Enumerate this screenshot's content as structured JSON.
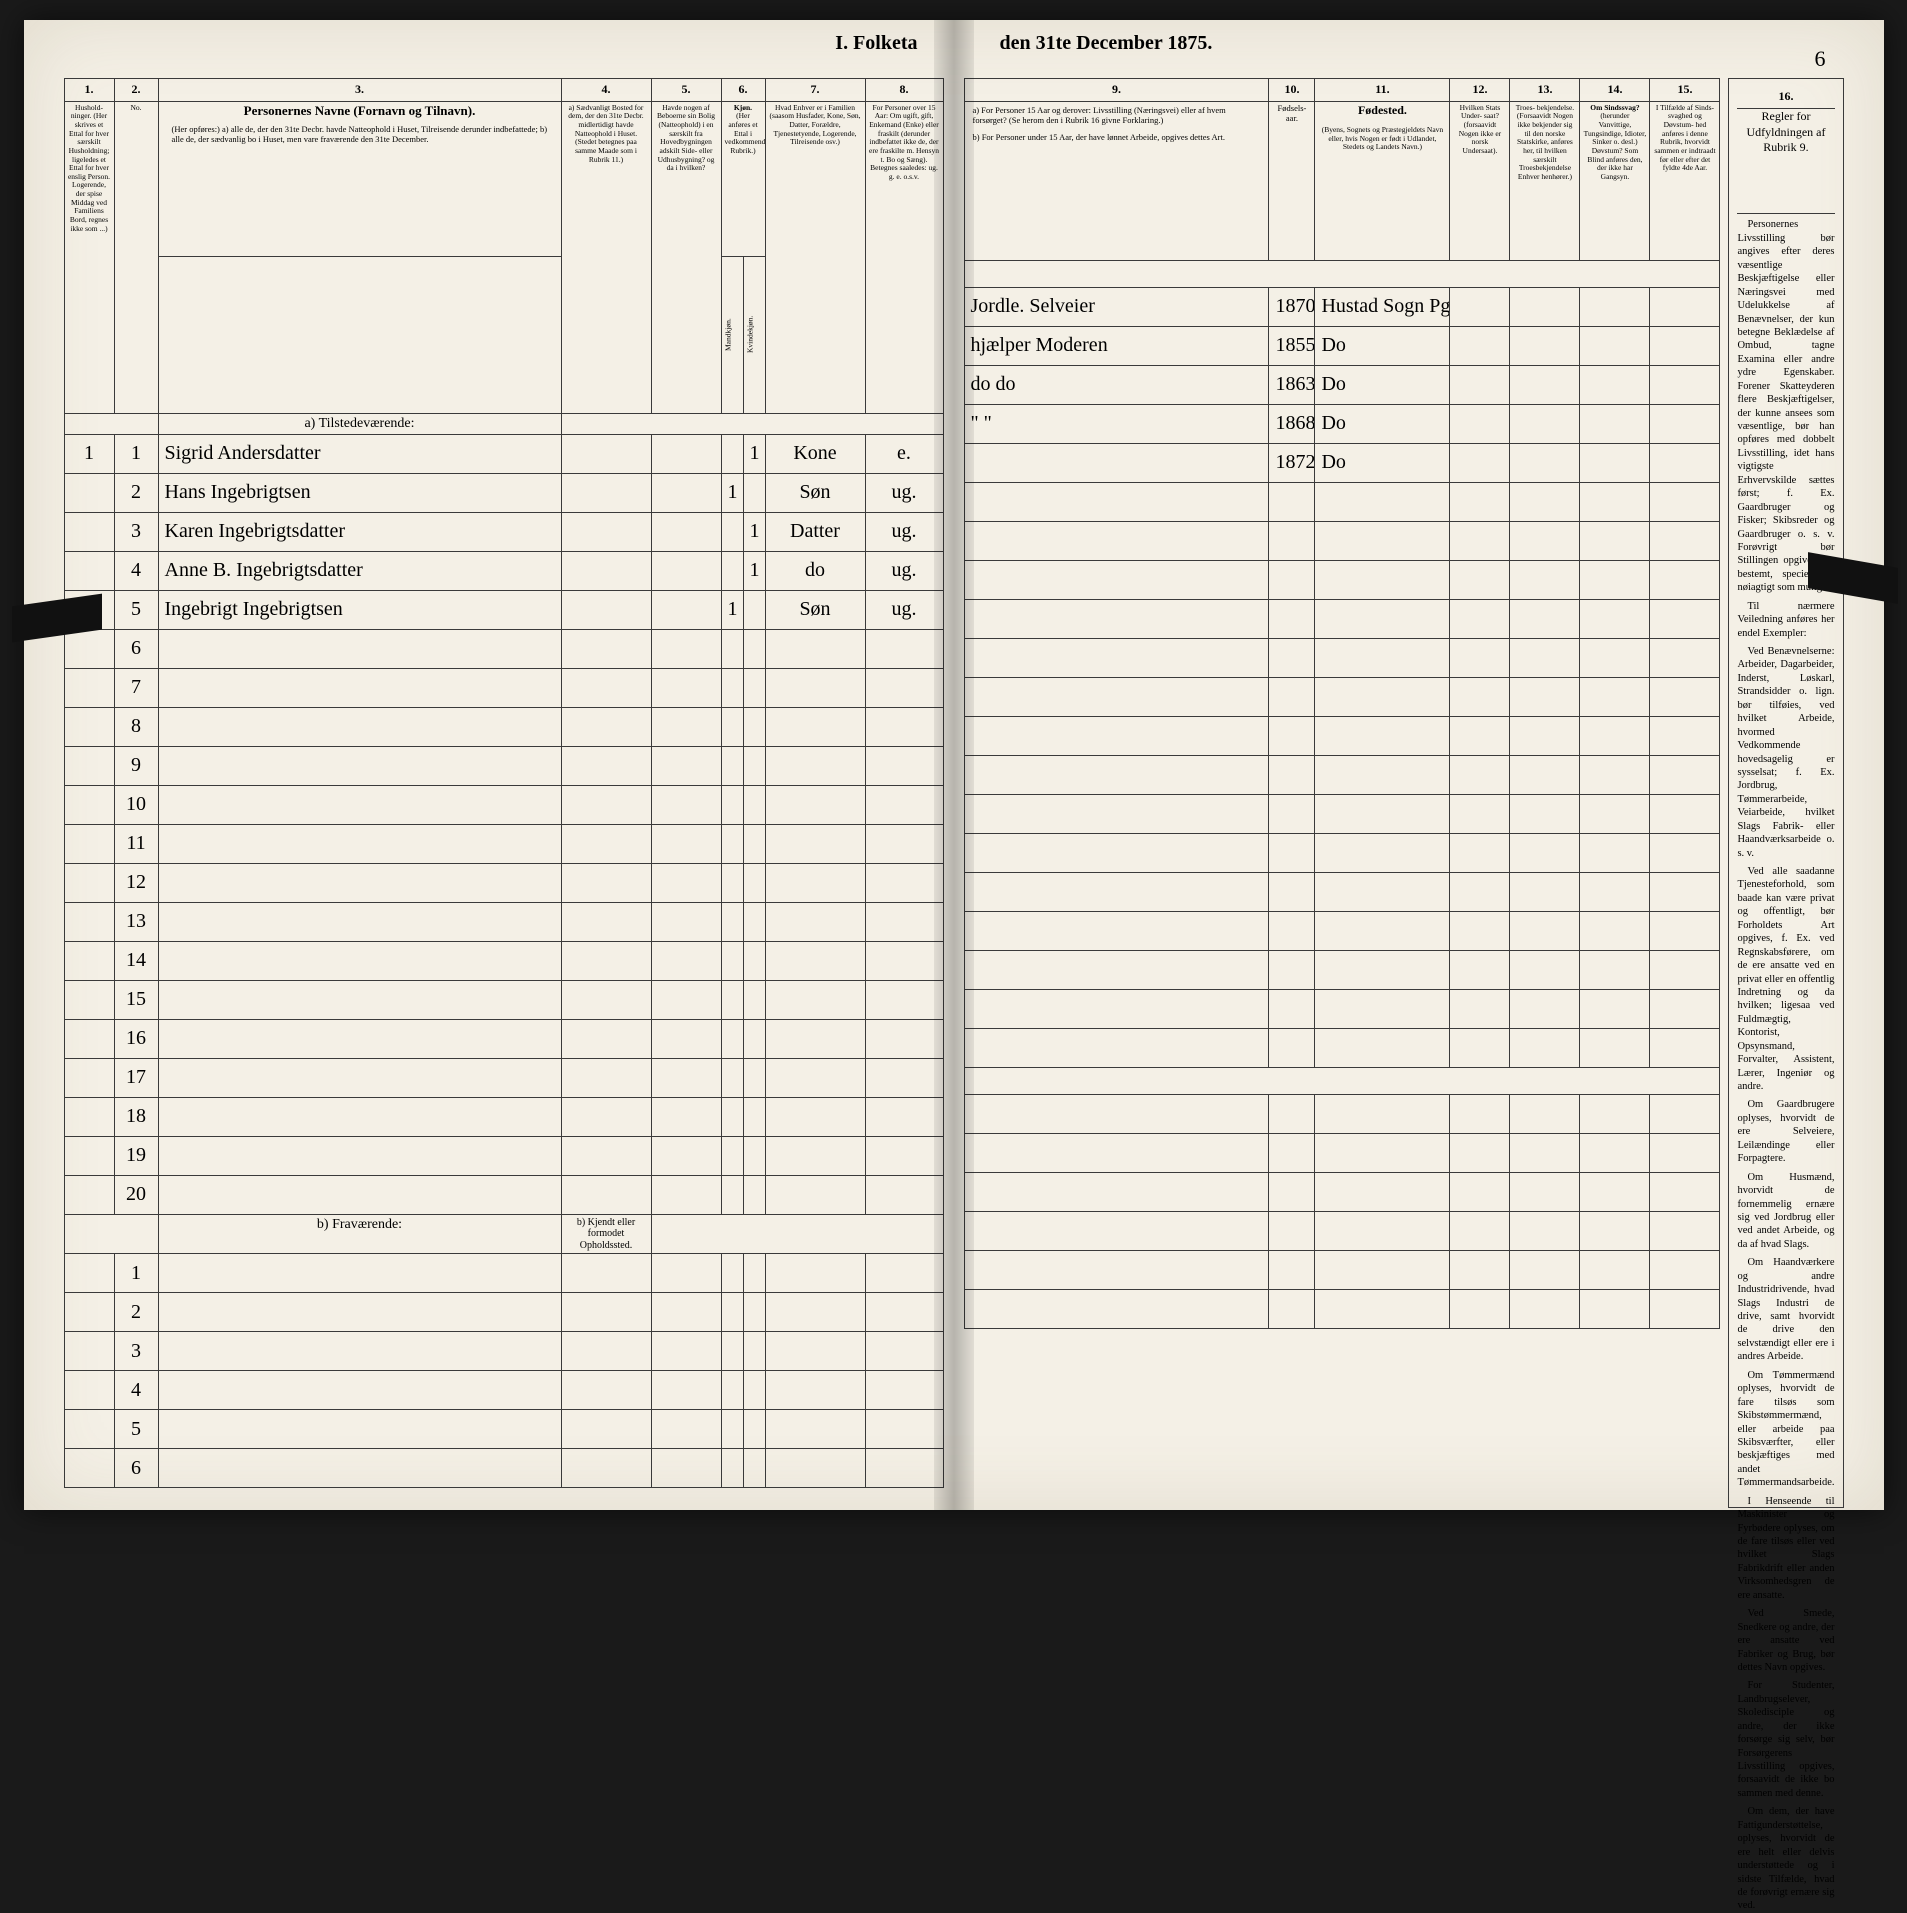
{
  "title_left": "I.  Folketa",
  "title_right": "den 31te December 1875.",
  "page_number": "6",
  "columns_left": [
    "1.",
    "2.",
    "3.",
    "4.",
    "5.",
    "6.",
    "7.",
    "8."
  ],
  "columns_right": [
    "9.",
    "10.",
    "11.",
    "12.",
    "13.",
    "14.",
    "15.",
    "16."
  ],
  "header_left": {
    "c1": "Hushold-\nninger.\n(Her skrives et Ettal for hver særskilt Husholdning; ligeledes et Ettal for hver enslig Person.  Logerende, der spise Middag ved Familiens Bord, regnes ikke som ...) ",
    "c2": "No.",
    "c3_title": "Personernes Navne (Fornavn og Tilnavn).",
    "c3_sub": "(Her opføres:)\na) alle de, der den 31te Decbr. havde Natteophold i Huset, Tilreisende derunder indbefattede;\nb) alle de, der sædvanlig bo i Huset, men vare fraværende den 31te December.",
    "c4": "a) Sædvanligt Bosted for dem, der den 31te Decbr. midlertidigt havde Natteophold i Huset. (Stedet betegnes paa samme Maade som i Rubrik 11.)",
    "c5": "Havde nogen af Beboerne sin Bolig (Natteophold) i en særskilt fra Hovedbygningen adskilt Side- eller Udhusbygning? og da i hvilken?",
    "c6_title": "Kjøn.",
    "c6_sub": "(Her anføres et Ettal i vedkommende Rubrik.)",
    "c6_m": "Mandkjøn.",
    "c6_k": "Kvindekjøn.",
    "c7": "Hvad Enhver er i Familien\n(saasom Husfader, Kone, Søn, Datter, Forældre, Tjenestetyende, Logerende, Tilreisende osv.)",
    "c8": "For Personer over 15 Aar: Om ugift, gift, Enkemand (Enke) eller fraskilt (derunder indbefattet ikke de, der ere fraskilte m. Hensyn t. Bo og Sæng). Betegnes saaledes: ug. g. e. o.s.v."
  },
  "header_right": {
    "c9a": "a) For Personer 15 Aar og derover: Livsstilling (Næringsvei) eller af hvem forsørget? (Se herom den i Rubrik 16 givne Forklaring.)",
    "c9b": "b) For Personer under 15 Aar, der have lønnet Arbeide, opgives dettes Art.",
    "c10": "Fødsels-\naar.",
    "c11_title": "Fødested.",
    "c11_sub": "(Byens, Sognets og Præstegjeldets Navn eller, hvis Nogen er født i Udlandet, Stedets og Landets Navn.)",
    "c12_title": "Hvilken Stats Under-\nsaat?",
    "c12_sub": "(forsaavidt Nogen ikke er norsk Undersaat).",
    "c13_title": "Troes-\nbekjendelse.",
    "c13_sub": "(Forsaavidt Nogen ikke bekjender sig til den norske Statskirke, anføres her, til hvilken særskilt Troesbekjendelse Enhver henhører.)",
    "c14_title": "Om Sindssvag?",
    "c14_sub": "(herunder Vanvittige, Tungsindige, Idioter, Sinker o. desl.)  Døvstum? Som Blind anføres den, der ikke har Gangsyn.",
    "c15_title": "I Tilfælde af Sinds-\nsvaghed og Døvstum-\nhed  anføres i denne Rubrik, hvorvidt sammen er indtraadt før eller efter det fyldte 4de Aar."
  },
  "rules_title": "Regler for Udfyldningen\naf\nRubrik 9.",
  "section_a": "a) Tilstedeværende:",
  "section_b": "b) Fraværende:",
  "section_b_right": "b) Kjendt eller formodet Opholdssted.",
  "rows": [
    {
      "n": "1",
      "p": "1",
      "name": "Sigrid Andersdatter",
      "c4": "",
      "c5": "",
      "m": "",
      "k": "1",
      "fam": "Kone",
      "stat": "e.",
      "occ": "Jordle. Selveier",
      "year": "1870",
      "place": "Hustad Sogn Pgd."
    },
    {
      "n": "",
      "p": "2",
      "name": "Hans Ingebrigtsen",
      "c4": "",
      "c5": "",
      "m": "1",
      "k": "",
      "fam": "Søn",
      "stat": "ug.",
      "occ": "hjælper Moderen",
      "year": "1855",
      "place": "Do"
    },
    {
      "n": "",
      "p": "3",
      "name": "Karen Ingebrigtsdatter",
      "c4": "",
      "c5": "",
      "m": "",
      "k": "1",
      "fam": "Datter",
      "stat": "ug.",
      "occ": "do   do",
      "year": "1863",
      "place": "Do"
    },
    {
      "n": "",
      "p": "4",
      "name": "Anne B. Ingebrigtsdatter",
      "c4": "",
      "c5": "",
      "m": "",
      "k": "1",
      "fam": "do",
      "stat": "ug.",
      "occ": "\"   \"",
      "year": "1868",
      "place": "Do"
    },
    {
      "n": "",
      "p": "5",
      "name": "Ingebrigt Ingebrigtsen",
      "c4": "",
      "c5": "",
      "m": "1",
      "k": "",
      "fam": "Søn",
      "stat": "ug.",
      "occ": "",
      "year": "1872",
      "place": "Do"
    }
  ],
  "blank_rows_a": [
    "6",
    "7",
    "8",
    "9",
    "10",
    "11",
    "12",
    "13",
    "14",
    "15",
    "16",
    "17",
    "18",
    "19",
    "20"
  ],
  "blank_rows_b": [
    "1",
    "2",
    "3",
    "4",
    "5",
    "6"
  ],
  "rules_paragraphs": [
    "Personernes Livsstilling bør angives efter deres væsentlige Beskjæftigelse eller Næringsvei med Udelukkelse af Benævnelser, der kun betegne Beklædelse af Ombud, tagne Examina eller andre ydre Egenskaber. Forener Skatteyderen flere Beskjæftigelser, der kunne ansees som væsentlige, bør han opføres med dobbelt Livsstilling, idet hans vigtigste Erhvervskilde sættes først; f. Ex. Gaardbruger og Fisker; Skibsreder og Gaardbruger o. s. v. Forøvrigt bør Stillingen opgives saa bestemt, specielt og nøiagtigt som muligt.",
    "Til nærmere Veiledning anføres her endel Exempler:",
    "Ved Benævnelserne: Arbeider, Dagarbeider, Inderst, Løskarl, Strandsidder o. lign. bør tilføies, ved hvilket Arbeide, hvormed Vedkommende hovedsagelig er sysselsat; f. Ex. Jordbrug, Tømmerarbeide, Veiarbeide, hvilket Slags Fabrik- eller Haandværksarbeide o. s. v.",
    "Ved alle saadanne Tjenesteforhold, som baade kan være privat og offentligt, bør Forholdets Art opgives, f. Ex. ved Regnskabsførere, om de ere ansatte ved en privat eller en offentlig Indretning og da hvilken; ligesaa ved Fuldmægtig, Kontorist, Opsynsmand, Forvalter, Assistent, Lærer, Ingeniør og andre.",
    "Om Gaardbrugere oplyses, hvorvidt de ere Selveiere, Leilændinge eller Forpagtere.",
    "Om Husmænd, hvorvidt de fornemmelig ernære sig ved Jordbrug eller ved andet Arbeide, og da af hvad Slags.",
    "Om Haandværkere og andre Industridrivende, hvad Slags Industri de drive, samt hvorvidt de drive den selvstændigt eller ere i andres Arbeide.",
    "Om Tømmermænd oplyses, hvorvidt de fare tilsøs som Skibstømmermænd, eller arbeide paa Skibsværfter, eller beskjæftiges med andet Tømmermandsarbeide.",
    "I Henseende til Maskinister og Fyrbødere oplyses, om de fare tilsøs eller ved hvilket Slags Fabrikdrift eller anden Virksomhedsgren de ere ansatte.",
    "Ved Smede, Snedkere og andre, der ere ansatte ved Fabriker og Brug, bør dettes Navn opgives.",
    "For Studenter, Landbrugselever, Skoledisciple og andre, der ikke forsørge sig selv, bør Forsørgerens Livsstilling opgives, forsaavidt de ikke bo sammen med denne.",
    "Om dem, der have Fattigunderstøttelse, oplyses, hvorvidt de ere helt eller delvis understøttede og i sidste Tilfælde, hvad de forøvrigt ernære sig ved."
  ],
  "colors": {
    "paper": "#f4f0e6",
    "ink": "#2a2a2a",
    "rule": "#3a3a3a"
  }
}
